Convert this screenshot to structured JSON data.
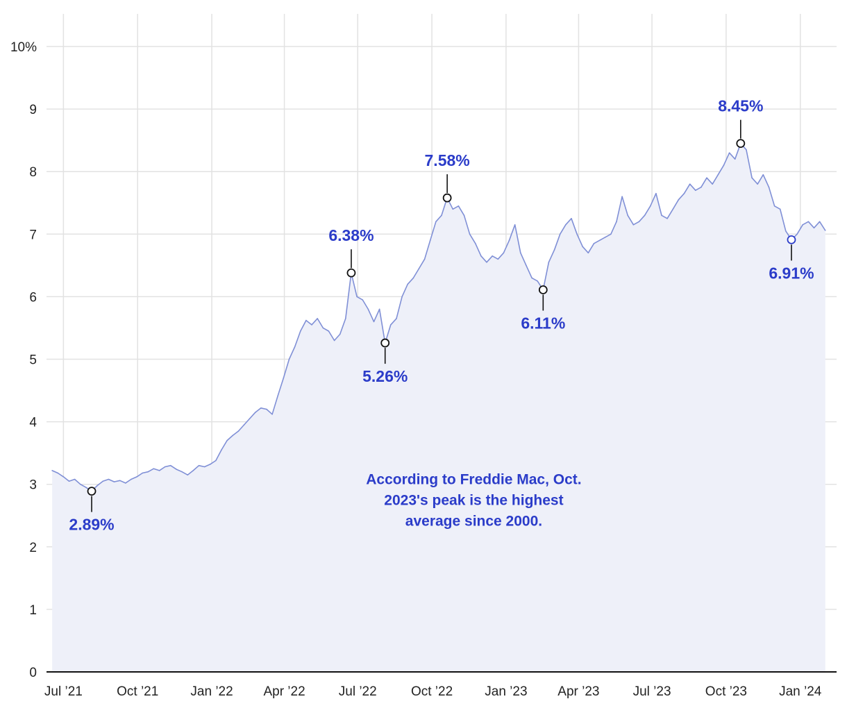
{
  "colors": {
    "line": "#7f8fd6",
    "area": "#eef0f9",
    "accent": "#2b3cc9",
    "grid": "#e2e2e2",
    "axis": "#111111",
    "marker": "#111111"
  },
  "chart_data": {
    "type": "area",
    "title": "",
    "xlabel": "",
    "ylabel": "",
    "grid": true,
    "xlim": [
      "2021-06-10",
      "2024-02-15"
    ],
    "ylim": [
      0,
      10
    ],
    "y_ticks": [
      0,
      1,
      2,
      3,
      4,
      5,
      6,
      7,
      8,
      9,
      10
    ],
    "y_tick_labels": [
      "0",
      "1",
      "2",
      "3",
      "4",
      "5",
      "6",
      "7",
      "8",
      "9",
      "10%"
    ],
    "x_ticks": [
      "2021-07-01",
      "2021-10-01",
      "2022-01-01",
      "2022-04-01",
      "2022-07-01",
      "2022-10-01",
      "2023-01-01",
      "2023-04-01",
      "2023-07-01",
      "2023-10-01",
      "2024-01-01"
    ],
    "x_tick_labels": [
      "Jul ’21",
      "Oct ’21",
      "Jan ’22",
      "Apr ’22",
      "Jul ’22",
      "Oct ’22",
      "Jan ’23",
      "Apr ’23",
      "Jul ’23",
      "Oct ’23",
      "Jan ’24"
    ],
    "series": [
      {
        "points": [
          [
            "2021-06-17",
            3.22
          ],
          [
            "2021-06-24",
            3.18
          ],
          [
            "2021-07-01",
            3.12
          ],
          [
            "2021-07-08",
            3.05
          ],
          [
            "2021-07-15",
            3.08
          ],
          [
            "2021-07-22",
            3.0
          ],
          [
            "2021-07-29",
            2.95
          ],
          [
            "2021-08-05",
            2.89
          ],
          [
            "2021-08-12",
            2.98
          ],
          [
            "2021-08-19",
            3.05
          ],
          [
            "2021-08-26",
            3.08
          ],
          [
            "2021-09-02",
            3.04
          ],
          [
            "2021-09-09",
            3.06
          ],
          [
            "2021-09-16",
            3.02
          ],
          [
            "2021-09-23",
            3.08
          ],
          [
            "2021-09-30",
            3.12
          ],
          [
            "2021-10-07",
            3.18
          ],
          [
            "2021-10-14",
            3.2
          ],
          [
            "2021-10-21",
            3.25
          ],
          [
            "2021-10-28",
            3.22
          ],
          [
            "2021-11-04",
            3.28
          ],
          [
            "2021-11-11",
            3.3
          ],
          [
            "2021-11-18",
            3.24
          ],
          [
            "2021-11-25",
            3.2
          ],
          [
            "2021-12-02",
            3.15
          ],
          [
            "2021-12-09",
            3.22
          ],
          [
            "2021-12-16",
            3.3
          ],
          [
            "2021-12-23",
            3.28
          ],
          [
            "2021-12-30",
            3.32
          ],
          [
            "2022-01-06",
            3.38
          ],
          [
            "2022-01-13",
            3.55
          ],
          [
            "2022-01-20",
            3.7
          ],
          [
            "2022-01-27",
            3.78
          ],
          [
            "2022-02-03",
            3.85
          ],
          [
            "2022-02-10",
            3.95
          ],
          [
            "2022-02-17",
            4.05
          ],
          [
            "2022-02-24",
            4.15
          ],
          [
            "2022-03-03",
            4.22
          ],
          [
            "2022-03-10",
            4.2
          ],
          [
            "2022-03-17",
            4.12
          ],
          [
            "2022-03-24",
            4.42
          ],
          [
            "2022-03-31",
            4.7
          ],
          [
            "2022-04-07",
            5.0
          ],
          [
            "2022-04-14",
            5.2
          ],
          [
            "2022-04-21",
            5.45
          ],
          [
            "2022-04-28",
            5.62
          ],
          [
            "2022-05-05",
            5.55
          ],
          [
            "2022-05-12",
            5.65
          ],
          [
            "2022-05-19",
            5.5
          ],
          [
            "2022-05-26",
            5.45
          ],
          [
            "2022-06-02",
            5.3
          ],
          [
            "2022-06-09",
            5.4
          ],
          [
            "2022-06-16",
            5.65
          ],
          [
            "2022-06-23",
            6.38
          ],
          [
            "2022-06-30",
            6.0
          ],
          [
            "2022-07-07",
            5.95
          ],
          [
            "2022-07-14",
            5.8
          ],
          [
            "2022-07-21",
            5.6
          ],
          [
            "2022-07-28",
            5.8
          ],
          [
            "2022-08-04",
            5.26
          ],
          [
            "2022-08-11",
            5.55
          ],
          [
            "2022-08-18",
            5.65
          ],
          [
            "2022-08-25",
            6.0
          ],
          [
            "2022-09-01",
            6.2
          ],
          [
            "2022-09-08",
            6.3
          ],
          [
            "2022-09-15",
            6.45
          ],
          [
            "2022-09-22",
            6.6
          ],
          [
            "2022-09-29",
            6.9
          ],
          [
            "2022-10-06",
            7.2
          ],
          [
            "2022-10-13",
            7.3
          ],
          [
            "2022-10-20",
            7.58
          ],
          [
            "2022-10-27",
            7.4
          ],
          [
            "2022-11-03",
            7.45
          ],
          [
            "2022-11-10",
            7.3
          ],
          [
            "2022-11-17",
            7.0
          ],
          [
            "2022-11-24",
            6.85
          ],
          [
            "2022-12-01",
            6.65
          ],
          [
            "2022-12-08",
            6.55
          ],
          [
            "2022-12-15",
            6.65
          ],
          [
            "2022-12-22",
            6.6
          ],
          [
            "2022-12-29",
            6.7
          ],
          [
            "2023-01-05",
            6.9
          ],
          [
            "2023-01-12",
            7.15
          ],
          [
            "2023-01-19",
            6.7
          ],
          [
            "2023-01-26",
            6.5
          ],
          [
            "2023-02-02",
            6.3
          ],
          [
            "2023-02-09",
            6.25
          ],
          [
            "2023-02-16",
            6.11
          ],
          [
            "2023-02-23",
            6.55
          ],
          [
            "2023-03-02",
            6.75
          ],
          [
            "2023-03-09",
            7.0
          ],
          [
            "2023-03-16",
            7.15
          ],
          [
            "2023-03-23",
            7.25
          ],
          [
            "2023-03-30",
            7.0
          ],
          [
            "2023-04-06",
            6.8
          ],
          [
            "2023-04-13",
            6.7
          ],
          [
            "2023-04-20",
            6.85
          ],
          [
            "2023-04-27",
            6.9
          ],
          [
            "2023-05-04",
            6.95
          ],
          [
            "2023-05-11",
            7.0
          ],
          [
            "2023-05-18",
            7.2
          ],
          [
            "2023-05-25",
            7.6
          ],
          [
            "2023-06-01",
            7.3
          ],
          [
            "2023-06-08",
            7.15
          ],
          [
            "2023-06-15",
            7.2
          ],
          [
            "2023-06-22",
            7.3
          ],
          [
            "2023-06-29",
            7.45
          ],
          [
            "2023-07-06",
            7.65
          ],
          [
            "2023-07-13",
            7.3
          ],
          [
            "2023-07-20",
            7.25
          ],
          [
            "2023-07-27",
            7.4
          ],
          [
            "2023-08-03",
            7.55
          ],
          [
            "2023-08-10",
            7.65
          ],
          [
            "2023-08-17",
            7.8
          ],
          [
            "2023-08-24",
            7.7
          ],
          [
            "2023-08-31",
            7.75
          ],
          [
            "2023-09-07",
            7.9
          ],
          [
            "2023-09-14",
            7.8
          ],
          [
            "2023-09-21",
            7.95
          ],
          [
            "2023-09-28",
            8.1
          ],
          [
            "2023-10-05",
            8.3
          ],
          [
            "2023-10-12",
            8.2
          ],
          [
            "2023-10-19",
            8.45
          ],
          [
            "2023-10-26",
            8.35
          ],
          [
            "2023-11-02",
            7.9
          ],
          [
            "2023-11-09",
            7.8
          ],
          [
            "2023-11-16",
            7.95
          ],
          [
            "2023-11-23",
            7.75
          ],
          [
            "2023-11-30",
            7.45
          ],
          [
            "2023-12-07",
            7.4
          ],
          [
            "2023-12-14",
            7.05
          ],
          [
            "2023-12-21",
            6.91
          ],
          [
            "2023-12-28",
            7.0
          ],
          [
            "2024-01-04",
            7.15
          ],
          [
            "2024-01-11",
            7.2
          ],
          [
            "2024-01-18",
            7.1
          ],
          [
            "2024-01-25",
            7.2
          ],
          [
            "2024-02-01",
            7.06
          ]
        ]
      }
    ],
    "callouts": [
      {
        "date": "2021-08-05",
        "value": 2.89,
        "label": "2.89%",
        "position": "below"
      },
      {
        "date": "2022-06-23",
        "value": 6.38,
        "label": "6.38%",
        "position": "above"
      },
      {
        "date": "2022-08-04",
        "value": 5.26,
        "label": "5.26%",
        "position": "below"
      },
      {
        "date": "2022-10-20",
        "value": 7.58,
        "label": "7.58%",
        "position": "above"
      },
      {
        "date": "2023-02-16",
        "value": 6.11,
        "label": "6.11%",
        "position": "below"
      },
      {
        "date": "2023-10-19",
        "value": 8.45,
        "label": "8.45%",
        "position": "above"
      },
      {
        "date": "2023-12-21",
        "value": 6.91,
        "label": "6.91%",
        "position": "below",
        "highlight": true
      }
    ],
    "annotation": {
      "lines": [
        "According to Freddie Mac, Oct.",
        "2023's peak is the highest",
        "average since 2000."
      ],
      "anchor": {
        "date": "2022-11-22",
        "value": 3.0
      }
    }
  }
}
